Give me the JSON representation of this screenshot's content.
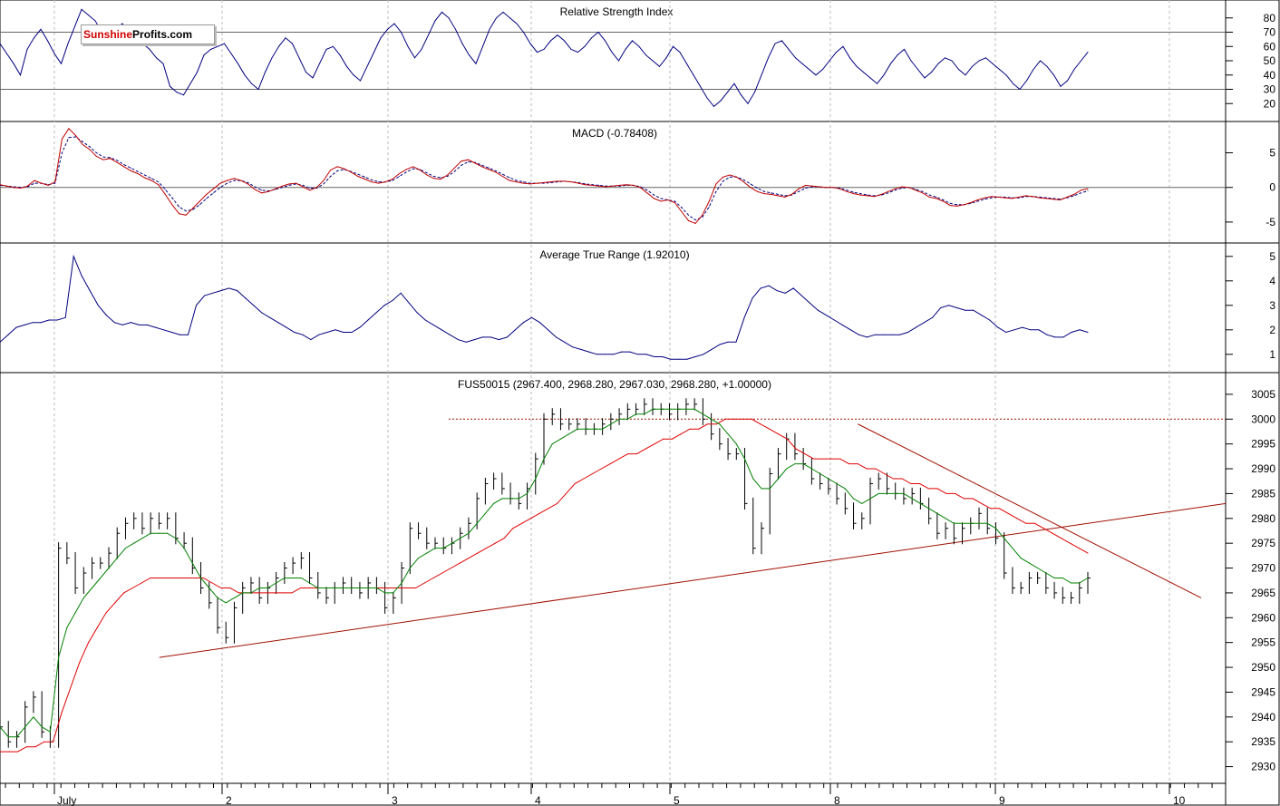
{
  "logo": {
    "brand_red": "Sunshine",
    "brand_black": "Profits.com"
  },
  "colors": {
    "price": "#000000",
    "rsi": "#000080",
    "macd": "#c00000",
    "signal": "#000080",
    "ma_short": "#008000",
    "ma_long": "#e00000",
    "trend": "#a01000",
    "grid": "#bbbbbb"
  },
  "chart_data": [
    {
      "type": "line",
      "title": "Relative Strength Index",
      "ylim": [
        10,
        90
      ],
      "yticks": [
        20,
        30,
        40,
        50,
        60,
        70,
        80
      ],
      "levels": [
        30,
        70
      ],
      "series": [
        {
          "values": [
            62,
            55,
            48,
            40,
            58,
            66,
            72,
            64,
            55,
            48,
            62,
            74,
            86,
            82,
            78,
            70,
            66,
            72,
            76,
            70,
            66,
            62,
            58,
            52,
            48,
            32,
            28,
            26,
            34,
            42,
            54,
            58,
            60,
            62,
            55,
            48,
            40,
            34,
            30,
            42,
            52,
            60,
            66,
            62,
            52,
            42,
            38,
            48,
            58,
            60,
            54,
            46,
            40,
            36,
            46,
            56,
            66,
            72,
            76,
            70,
            60,
            52,
            58,
            68,
            78,
            84,
            80,
            72,
            62,
            54,
            48,
            60,
            72,
            80,
            84,
            80,
            76,
            70,
            62,
            56,
            58,
            64,
            68,
            64,
            58,
            56,
            60,
            66,
            70,
            64,
            56,
            50,
            58,
            64,
            60,
            54,
            50,
            46,
            52,
            60,
            56,
            48,
            40,
            32,
            24,
            18,
            22,
            28,
            34,
            26,
            20,
            28,
            40,
            52,
            62,
            64,
            58,
            52,
            48,
            44,
            40,
            44,
            50,
            56,
            60,
            52,
            46,
            42,
            38,
            34,
            40,
            48,
            54,
            58,
            50,
            44,
            38,
            42,
            48,
            52,
            50,
            44,
            40,
            46,
            50,
            52,
            48,
            44,
            40,
            34,
            30,
            36,
            44,
            50,
            46,
            40,
            32,
            36,
            44,
            50,
            56
          ]
        }
      ],
      "x_date_ticks": [
        "July",
        "2",
        "3",
        "4",
        "5",
        "8",
        "9",
        "10"
      ]
    },
    {
      "type": "line",
      "title": "MACD (-0.78408)",
      "ylim": [
        -7.5,
        9
      ],
      "yticks": [
        -5,
        0,
        5
      ],
      "series": [
        {
          "values": [
            0.4,
            0.2,
            0.0,
            -0.1,
            0.2,
            1.0,
            0.6,
            0.3,
            0.8,
            7.0,
            8.5,
            7.5,
            6.2,
            5.5,
            4.5,
            4.0,
            4.2,
            3.6,
            3.0,
            2.4,
            2.0,
            1.4,
            1.0,
            0.4,
            -1.0,
            -2.5,
            -3.8,
            -4.0,
            -3.0,
            -2.0,
            -1.0,
            -0.2,
            0.6,
            1.0,
            1.3,
            1.0,
            0.5,
            -0.3,
            -0.8,
            -0.6,
            -0.2,
            0.2,
            0.5,
            0.6,
            0.1,
            -0.4,
            0.0,
            1.0,
            2.5,
            3.0,
            2.7,
            2.2,
            1.6,
            1.2,
            0.8,
            0.6,
            0.8,
            1.2,
            2.0,
            2.6,
            3.0,
            2.5,
            1.8,
            1.3,
            1.2,
            1.8,
            2.8,
            3.8,
            4.0,
            3.5,
            3.0,
            2.6,
            2.2,
            1.6,
            1.0,
            0.8,
            0.6,
            0.5,
            0.6,
            0.7,
            0.8,
            0.9,
            0.9,
            0.8,
            0.6,
            0.4,
            0.3,
            0.2,
            0.1,
            0.2,
            0.3,
            0.4,
            0.3,
            0.0,
            -0.8,
            -1.6,
            -2.0,
            -1.8,
            -2.2,
            -3.5,
            -4.8,
            -5.2,
            -4.0,
            -2.0,
            0.5,
            1.5,
            1.8,
            1.5,
            0.8,
            0.0,
            -0.6,
            -0.9,
            -1.0,
            -1.2,
            -1.4,
            -1.0,
            -0.2,
            0.3,
            0.2,
            0.1,
            0.0,
            0.0,
            -0.2,
            -0.6,
            -0.9,
            -1.1,
            -1.2,
            -1.3,
            -1.0,
            -0.6,
            -0.2,
            0.1,
            0.0,
            -0.4,
            -0.8,
            -1.4,
            -1.6,
            -2.0,
            -2.6,
            -2.7,
            -2.5,
            -2.2,
            -1.8,
            -1.5,
            -1.3,
            -1.4,
            -1.5,
            -1.6,
            -1.4,
            -1.2,
            -1.3,
            -1.5,
            -1.6,
            -1.7,
            -1.8,
            -1.4,
            -1.0,
            -0.4,
            -0.2
          ]
        },
        {
          "values": [
            0.3,
            0.2,
            0.1,
            0.0,
            0.1,
            0.6,
            0.6,
            0.4,
            0.6,
            5.0,
            7.2,
            7.3,
            6.6,
            5.9,
            5.0,
            4.4,
            4.3,
            3.9,
            3.3,
            2.8,
            2.3,
            1.8,
            1.3,
            0.8,
            -0.3,
            -1.5,
            -2.8,
            -3.4,
            -3.2,
            -2.5,
            -1.6,
            -0.8,
            0.0,
            0.6,
            1.0,
            1.0,
            0.7,
            0.1,
            -0.4,
            -0.5,
            -0.3,
            0.0,
            0.3,
            0.5,
            0.3,
            -0.1,
            -0.1,
            0.5,
            1.6,
            2.4,
            2.6,
            2.3,
            1.9,
            1.5,
            1.1,
            0.8,
            0.8,
            1.0,
            1.6,
            2.2,
            2.7,
            2.6,
            2.1,
            1.6,
            1.4,
            1.6,
            2.3,
            3.2,
            3.7,
            3.6,
            3.2,
            2.8,
            2.4,
            1.9,
            1.4,
            1.0,
            0.8,
            0.6,
            0.6,
            0.6,
            0.7,
            0.8,
            0.9,
            0.8,
            0.7,
            0.5,
            0.4,
            0.3,
            0.2,
            0.2,
            0.2,
            0.3,
            0.3,
            0.1,
            -0.4,
            -1.1,
            -1.6,
            -1.8,
            -2.0,
            -2.9,
            -4.0,
            -4.7,
            -4.3,
            -2.8,
            -0.6,
            0.9,
            1.5,
            1.5,
            1.1,
            0.5,
            -0.1,
            -0.6,
            -0.8,
            -1.0,
            -1.2,
            -1.1,
            -0.6,
            -0.1,
            0.1,
            0.1,
            0.0,
            0.0,
            -0.1,
            -0.4,
            -0.7,
            -0.9,
            -1.1,
            -1.2,
            -1.1,
            -0.8,
            -0.4,
            -0.1,
            0.0,
            -0.3,
            -0.6,
            -1.1,
            -1.4,
            -1.8,
            -2.3,
            -2.5,
            -2.5,
            -2.3,
            -2.0,
            -1.7,
            -1.5,
            -1.4,
            -1.4,
            -1.5,
            -1.5,
            -1.3,
            -1.3,
            -1.4,
            -1.5,
            -1.6,
            -1.7,
            -1.5,
            -1.2,
            -0.8,
            -0.5
          ]
        }
      ]
    },
    {
      "type": "line",
      "title": "Average True Range (1.92010)",
      "ylim": [
        0.4,
        5.4
      ],
      "yticks": [
        1,
        2,
        3,
        4,
        5
      ],
      "series": [
        {
          "values": [
            1.5,
            1.8,
            2.1,
            2.2,
            2.3,
            2.3,
            2.4,
            2.4,
            2.5,
            5.0,
            4.2,
            3.6,
            3.0,
            2.6,
            2.3,
            2.2,
            2.3,
            2.2,
            2.2,
            2.1,
            2.0,
            1.9,
            1.8,
            1.8,
            3.0,
            3.4,
            3.5,
            3.6,
            3.7,
            3.6,
            3.3,
            3.0,
            2.7,
            2.5,
            2.3,
            2.1,
            1.9,
            1.8,
            1.6,
            1.8,
            1.9,
            2.0,
            1.9,
            1.9,
            2.1,
            2.4,
            2.7,
            3.0,
            3.2,
            3.5,
            3.1,
            2.7,
            2.4,
            2.2,
            2.0,
            1.8,
            1.6,
            1.5,
            1.6,
            1.7,
            1.7,
            1.6,
            1.7,
            2.0,
            2.3,
            2.5,
            2.3,
            2.0,
            1.7,
            1.5,
            1.3,
            1.2,
            1.1,
            1.0,
            1.0,
            1.0,
            1.1,
            1.1,
            1.0,
            1.0,
            0.9,
            0.9,
            0.8,
            0.8,
            0.8,
            0.9,
            1.0,
            1.2,
            1.4,
            1.5,
            1.5,
            2.5,
            3.3,
            3.7,
            3.8,
            3.6,
            3.5,
            3.7,
            3.4,
            3.1,
            2.8,
            2.6,
            2.4,
            2.2,
            2.0,
            1.8,
            1.7,
            1.8,
            1.8,
            1.8,
            1.8,
            1.9,
            2.1,
            2.3,
            2.5,
            2.9,
            3.0,
            2.9,
            2.8,
            2.8,
            2.6,
            2.4,
            2.1,
            1.9,
            2.0,
            2.1,
            2.0,
            2.0,
            1.8,
            1.7,
            1.7,
            1.9,
            2.0,
            1.9
          ]
        }
      ]
    },
    {
      "type": "line",
      "title": "FUS50015 (2967.400, 2968.280, 2967.030, 2968.280, +1.00000)",
      "ylim": [
        2927,
        3009
      ],
      "yticks": [
        2930,
        2935,
        2940,
        2945,
        2950,
        2955,
        2960,
        2965,
        2970,
        2975,
        2980,
        2985,
        2990,
        2995,
        3000,
        3005
      ],
      "x_date_ticks": [
        "July",
        "2",
        "3",
        "4",
        "5",
        "8",
        "9",
        "10"
      ],
      "series": [
        {
          "name": "price",
          "values": [
            2938,
            2935,
            2936,
            2942,
            2944,
            2937,
            2935,
            2974,
            2972,
            2966,
            2969,
            2971,
            2971,
            2973,
            2977,
            2979,
            2980,
            2978,
            2980,
            2979,
            2980,
            2976,
            2975,
            2970,
            2966,
            2963,
            2958,
            2956,
            2962,
            2966,
            2967,
            2964,
            2966,
            2968,
            2970,
            2971,
            2972,
            2968,
            2965,
            2964,
            2966,
            2967,
            2966,
            2965,
            2967,
            2966,
            2962,
            2964,
            2970,
            2978,
            2977,
            2975,
            2975,
            2974,
            2975,
            2977,
            2979,
            2984,
            2987,
            2988,
            2986,
            2984,
            2983,
            2986,
            2992,
            3000,
            3001,
            2999,
            2999,
            2999,
            2998,
            2998,
            2999,
            3000,
            3001,
            3002,
            3002,
            3003,
            3002,
            3002,
            3001,
            3002,
            3003,
            3003,
            3000,
            2997,
            2995,
            2993,
            2993,
            2983,
            2974,
            2978,
            2989,
            2993,
            2996,
            2993,
            2991,
            2988,
            2987,
            2986,
            2984,
            2982,
            2979,
            2980,
            2987,
            2988,
            2986,
            2985,
            2984,
            2985,
            2983,
            2980,
            2977,
            2978,
            2976,
            2978,
            2979,
            2981,
            2978,
            2976,
            2969,
            2966,
            2966,
            2968,
            2968,
            2966,
            2965,
            2964,
            2964,
            2966,
            2968
          ]
        },
        {
          "name": "ma-short",
          "values": [
            2938,
            2936,
            2936,
            2938,
            2940,
            2938,
            2937,
            2952,
            2958,
            2961,
            2964,
            2966,
            2968,
            2970,
            2972,
            2974,
            2975,
            2976,
            2977,
            2977,
            2977,
            2976,
            2974,
            2971,
            2968,
            2966,
            2964,
            2963,
            2964,
            2965,
            2965,
            2966,
            2966,
            2967,
            2968,
            2968,
            2968,
            2967,
            2966,
            2966,
            2966,
            2966,
            2966,
            2966,
            2966,
            2966,
            2965,
            2965,
            2967,
            2970,
            2972,
            2973,
            2974,
            2974,
            2975,
            2976,
            2977,
            2979,
            2981,
            2983,
            2984,
            2984,
            2984,
            2985,
            2988,
            2992,
            2995,
            2996,
            2997,
            2998,
            2998,
            2998,
            2998,
            2999,
            3000,
            3000,
            3001,
            3001,
            3002,
            3002,
            3002,
            3002,
            3002,
            3002,
            3001,
            3000,
            2999,
            2997,
            2995,
            2992,
            2988,
            2986,
            2986,
            2988,
            2990,
            2991,
            2991,
            2990,
            2989,
            2988,
            2987,
            2986,
            2984,
            2983,
            2984,
            2985,
            2985,
            2985,
            2985,
            2984,
            2983,
            2982,
            2981,
            2980,
            2979,
            2979,
            2979,
            2979,
            2979,
            2978,
            2976,
            2974,
            2972,
            2971,
            2970,
            2969,
            2968,
            2968,
            2967,
            2967,
            2968
          ]
        },
        {
          "name": "ma-long",
          "values": [
            2933,
            2933,
            2933,
            2934,
            2934,
            2935,
            2935,
            2941,
            2946,
            2951,
            2955,
            2958,
            2961,
            2963,
            2965,
            2966,
            2967,
            2968,
            2968,
            2968,
            2968,
            2968,
            2968,
            2968,
            2967,
            2966,
            2966,
            2965,
            2965,
            2965,
            2965,
            2965,
            2965,
            2965,
            2966,
            2966,
            2966,
            2966,
            2966,
            2966,
            2966,
            2966,
            2966,
            2966,
            2966,
            2966,
            2966,
            2966,
            2967,
            2968,
            2969,
            2970,
            2971,
            2972,
            2973,
            2974,
            2975,
            2976,
            2978,
            2979,
            2980,
            2981,
            2982,
            2983,
            2985,
            2987,
            2988,
            2989,
            2990,
            2991,
            2992,
            2993,
            2993,
            2994,
            2995,
            2996,
            2996,
            2997,
            2998,
            2998,
            2999,
            2999,
            3000,
            3000,
            3000,
            3000,
            2999,
            2998,
            2997,
            2996,
            2994,
            2993,
            2992,
            2992,
            2992,
            2992,
            2991,
            2991,
            2990,
            2990,
            2989,
            2988,
            2988,
            2987,
            2987,
            2986,
            2986,
            2985,
            2985,
            2984,
            2984,
            2983,
            2982,
            2982,
            2981,
            2980,
            2979,
            2979,
            2978,
            2977,
            2976,
            2975,
            2974,
            2973
          ]
        }
      ],
      "resistance_level": 3000,
      "trendlines": [
        {
          "from": [
            0.13,
            2952
          ],
          "to": [
            1.0,
            2983
          ]
        },
        {
          "from": [
            0.7,
            2999
          ],
          "to": [
            0.98,
            2964
          ]
        }
      ]
    }
  ]
}
